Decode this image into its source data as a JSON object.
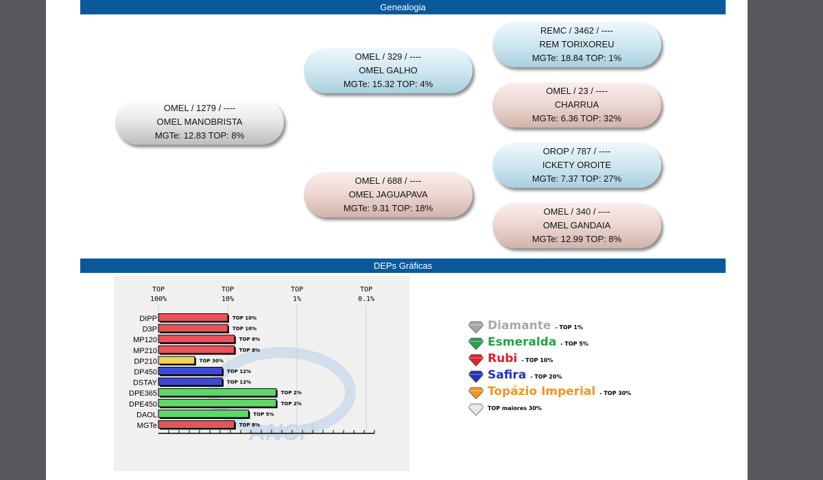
{
  "genealogy": {
    "header": "Genealogia",
    "animal": {
      "line1": "OMEL / 1279 / ----",
      "line2": "OMEL MANOBRISTA",
      "line3": "MGTe: 12.83   TOP: 8%"
    },
    "sire": {
      "line1": "OMEL / 329 / ----",
      "line2": "OMEL GALHO",
      "line3": "MGTe: 15.32   TOP: 4%"
    },
    "dam": {
      "line1": "OMEL / 688 / ----",
      "line2": "OMEL JAGUAPAVA",
      "line3": "MGTe: 9.31   TOP: 18%"
    },
    "sire_sire": {
      "line1": "REMC / 3462 / ----",
      "line2": "REM TORIXOREU",
      "line3": "MGTe: 18.84   TOP: 1%"
    },
    "sire_dam": {
      "line1": "OMEL / 23 / ----",
      "line2": "CHARRUA",
      "line3": "MGTe: 6.36   TOP: 32%"
    },
    "dam_sire": {
      "line1": "OROP / 787 / ----",
      "line2": "ICKETY OROITE",
      "line3": "MGTe: 7.37   TOP: 27%"
    },
    "dam_dam": {
      "line1": "OMEL / 340 / ----",
      "line2": "OMEL GANDAIA",
      "line3": "MGTe: 12.99   TOP: 8%"
    }
  },
  "deps": {
    "header": "DEPs Gráficas",
    "watermark": "ANCP"
  },
  "chart_data": {
    "type": "bar",
    "orientation": "horizontal",
    "axis_tick_labels": [
      {
        "line1": "TOP",
        "line2": "100%"
      },
      {
        "line1": "TOP",
        "line2": "10%"
      },
      {
        "line1": "TOP",
        "line2": "1%"
      },
      {
        "line1": "TOP",
        "line2": "0.1%"
      }
    ],
    "axis_scale": "log (TOP percentile, 100% to 0.1%)",
    "grid": true,
    "categories": [
      "DIPP",
      "D3P",
      "MP120",
      "MP210",
      "DP210",
      "DP450",
      "DSTAY",
      "DPE365",
      "DPE450",
      "DAOL",
      "MGTe"
    ],
    "values": [
      10,
      10,
      8,
      8,
      30,
      12,
      12,
      2,
      2,
      5,
      8
    ],
    "value_labels": [
      "TOP 10%",
      "TOP 10%",
      "TOP 8%",
      "TOP 8%",
      "TOP 30%",
      "TOP 12%",
      "TOP 12%",
      "TOP 2%",
      "TOP 2%",
      "TOP 5%",
      "TOP 8%"
    ],
    "bar_colors": [
      "#e8535a",
      "#e8535a",
      "#e8535a",
      "#e8535a",
      "#f3d357",
      "#3f49cf",
      "#3f49cf",
      "#5fd669",
      "#5fd669",
      "#5fd669",
      "#e8535a"
    ]
  },
  "legend": [
    {
      "name": "Diamante",
      "top": "TOP 1%",
      "color": "#a8a8a8",
      "icon": "diamond-gem-icon"
    },
    {
      "name": "Esmeralda",
      "top": "TOP 5%",
      "color": "#27a048",
      "icon": "emerald-gem-icon"
    },
    {
      "name": "Rubi",
      "top": "TOP 10%",
      "color": "#e0202a",
      "icon": "ruby-gem-icon"
    },
    {
      "name": "Safira",
      "top": "TOP 20%",
      "color": "#2430b8",
      "icon": "sapphire-gem-icon"
    },
    {
      "name": "Topázio Imperial",
      "top": "TOP 30%",
      "color": "#f0961e",
      "icon": "topaz-gem-icon"
    },
    {
      "name": "",
      "top": "TOP maiores 30%",
      "color": "#e6e6e6",
      "icon": "white-gem-icon"
    }
  ]
}
